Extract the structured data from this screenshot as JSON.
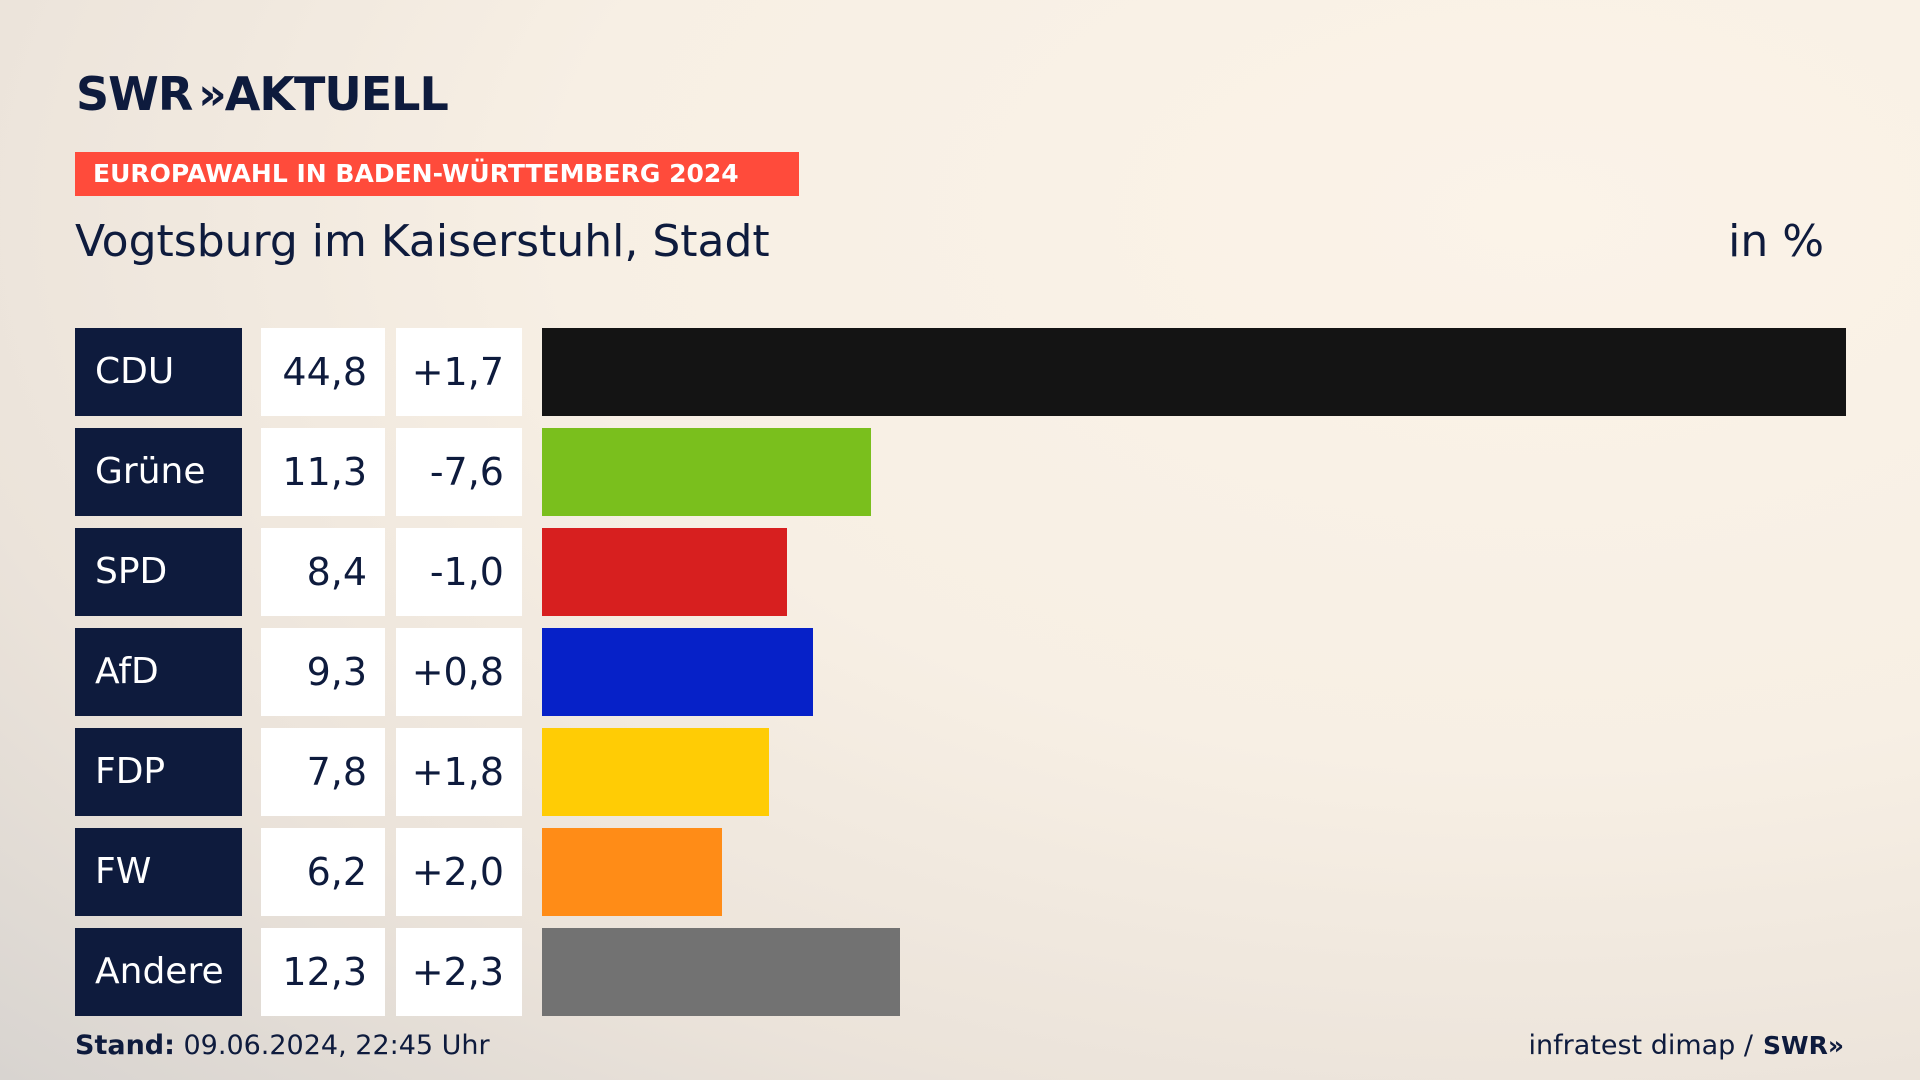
{
  "brand": {
    "logo_left": "SWR",
    "logo_chevrons": "»",
    "logo_right": "AKTUELL"
  },
  "banner": "EUROPAWAHL IN BADEN-WÜRTTEMBERG 2024",
  "title": "Vogtsburg im Kaiserstuhl, Stadt",
  "unit": "in %",
  "footer": {
    "stand_label": "Stand:",
    "stand_value": " 09.06.2024, 22:45 Uhr",
    "source": "infratest dimap /",
    "source_logo": "SWR»"
  },
  "chart_data": {
    "type": "bar",
    "orientation": "horizontal",
    "categories": [
      "CDU",
      "Grüne",
      "SPD",
      "AfD",
      "FDP",
      "FW",
      "Andere"
    ],
    "values": [
      44.8,
      11.3,
      8.4,
      9.3,
      7.8,
      6.2,
      12.3
    ],
    "value_labels": [
      "44,8",
      "11,3",
      "8,4",
      "9,3",
      "7,8",
      "6,2",
      "12,3"
    ],
    "diff_labels": [
      "+1,7",
      "-7,6",
      "-1,0",
      "+0,8",
      "+1,8",
      "+2,0",
      "+2,3"
    ],
    "diffs": [
      1.7,
      -7.6,
      -1.0,
      0.8,
      1.8,
      2.0,
      2.3
    ],
    "colors": [
      "#141414",
      "#7abf1d",
      "#d71f1f",
      "#0621c8",
      "#ffcc05",
      "#ff8c17",
      "#727272"
    ],
    "xlim": [
      0,
      44.8
    ],
    "grid": false,
    "legend": "none"
  }
}
